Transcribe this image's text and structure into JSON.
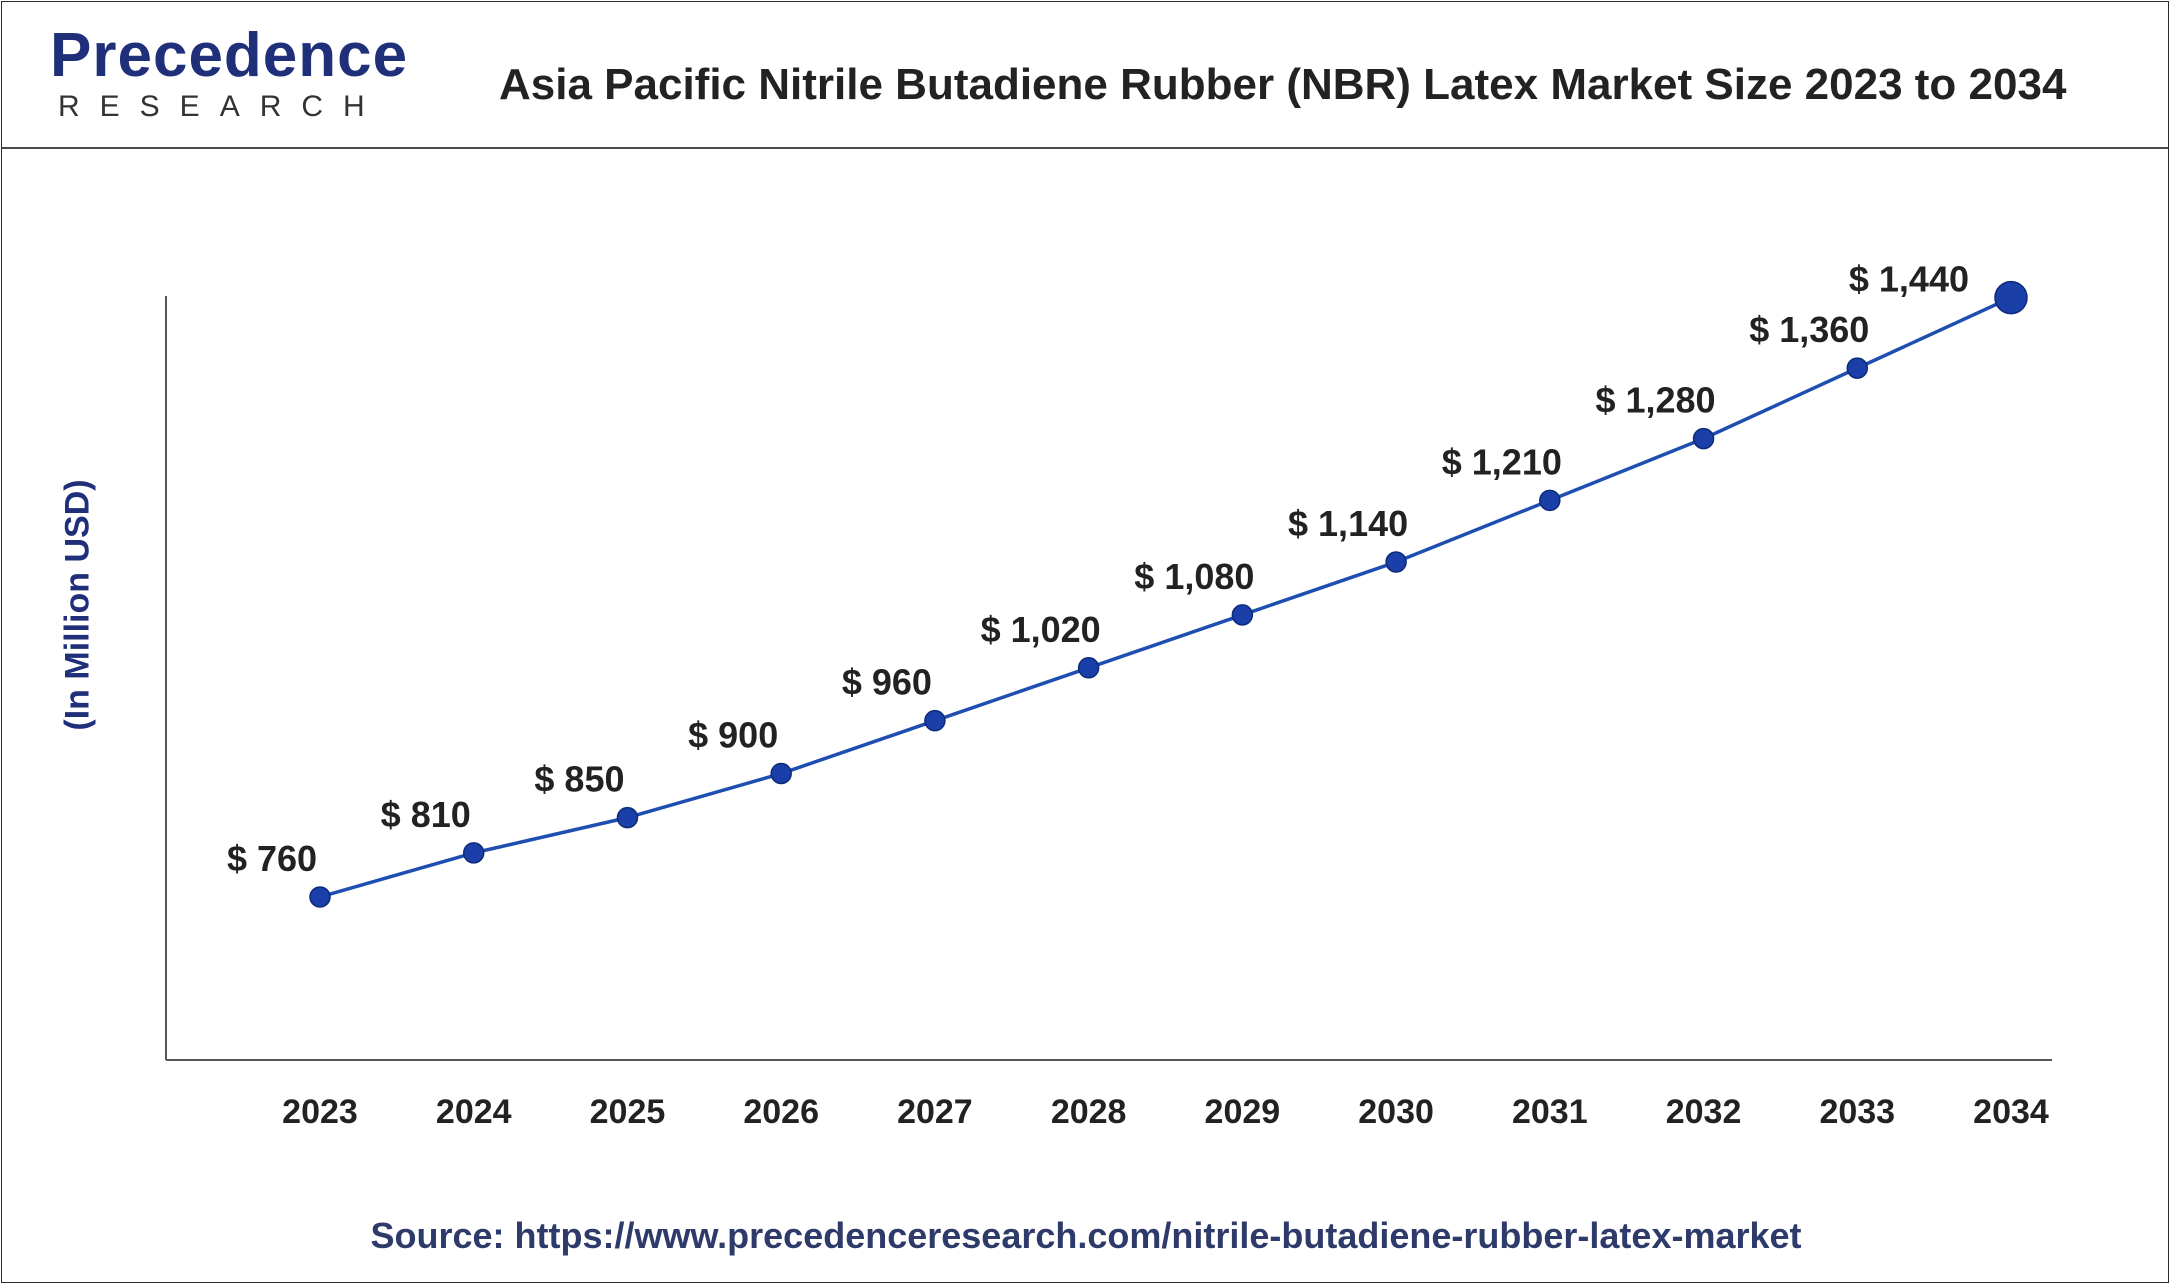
{
  "header": {
    "logo_top": "Precedence",
    "logo_bottom": "RESEARCH",
    "title": "Asia Pacific Nitrile Butadiene Rubber (NBR) Latex Market Size 2023 to 2034"
  },
  "source": "Source: https://www.precedenceresearch.com/nitrile-butadiene-rubber-latex-market",
  "colors": {
    "line": "#1e4fb0",
    "marker": "#1a3fa8",
    "text": "#222222",
    "accent": "#1f2f7a"
  },
  "chart_data": {
    "type": "line",
    "title": "Asia Pacific Nitrile Butadiene Rubber (NBR) Latex Market Size 2023 to 2034",
    "xlabel": "",
    "ylabel": "(In Million USD)",
    "categories": [
      "2023",
      "2024",
      "2025",
      "2026",
      "2027",
      "2028",
      "2029",
      "2030",
      "2031",
      "2032",
      "2033",
      "2034"
    ],
    "series": [
      {
        "values": [
          760,
          810,
          850,
          900,
          960,
          1020,
          1080,
          1140,
          1210,
          1280,
          1360,
          1440
        ],
        "labels": [
          "$ 760",
          "$ 810",
          "$ 850",
          "$ 900",
          "$ 960",
          "$ 1,020",
          "$ 1,080",
          "$ 1,140",
          "$ 1,210",
          "$ 1,280",
          "$ 1,360",
          "$ 1,440"
        ]
      }
    ],
    "ylim": [
      575,
      1460
    ],
    "grid": false,
    "legend": "none"
  }
}
